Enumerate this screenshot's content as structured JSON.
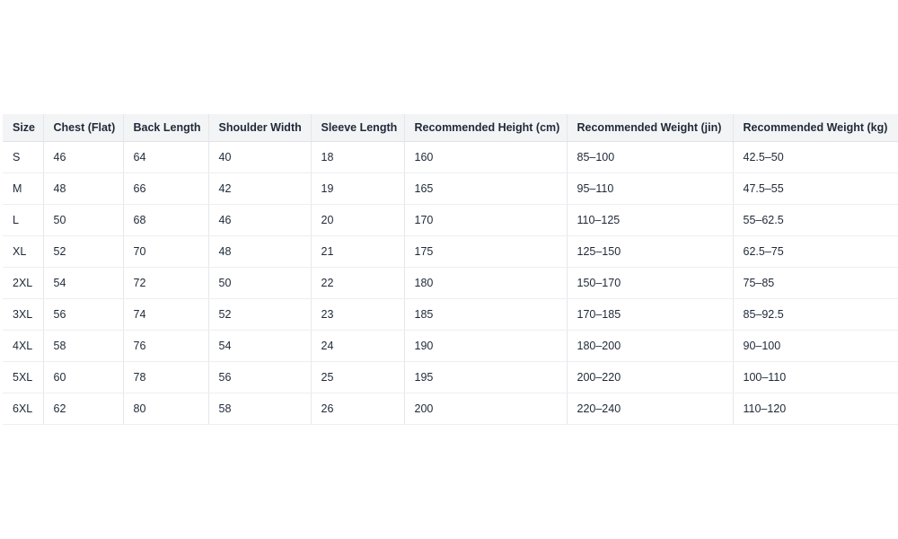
{
  "table": {
    "header": [
      "Size",
      "Chest (Flat)",
      "Back Length",
      "Shoulder Width",
      "Sleeve Length",
      "Recommended Height (cm)",
      "Recommended Weight (jin)",
      "Recommended Weight (kg)"
    ],
    "rows": [
      [
        "S",
        "46",
        "64",
        "40",
        "18",
        "160",
        "85–100",
        "42.5–50"
      ],
      [
        "M",
        "48",
        "66",
        "42",
        "19",
        "165",
        "95–110",
        "47.5–55"
      ],
      [
        "L",
        "50",
        "68",
        "46",
        "20",
        "170",
        "110–125",
        "55–62.5"
      ],
      [
        "XL",
        "52",
        "70",
        "48",
        "21",
        "175",
        "125–150",
        "62.5–75"
      ],
      [
        "2XL",
        "54",
        "72",
        "50",
        "22",
        "180",
        "150–170",
        "75–85"
      ],
      [
        "3XL",
        "56",
        "74",
        "52",
        "23",
        "185",
        "170–185",
        "85–92.5"
      ],
      [
        "4XL",
        "58",
        "76",
        "54",
        "24",
        "190",
        "180–200",
        "90–100"
      ],
      [
        "5XL",
        "60",
        "78",
        "56",
        "25",
        "195",
        "200–220",
        "100–110"
      ],
      [
        "6XL",
        "62",
        "80",
        "58",
        "26",
        "200",
        "220–240",
        "110–120"
      ]
    ]
  }
}
